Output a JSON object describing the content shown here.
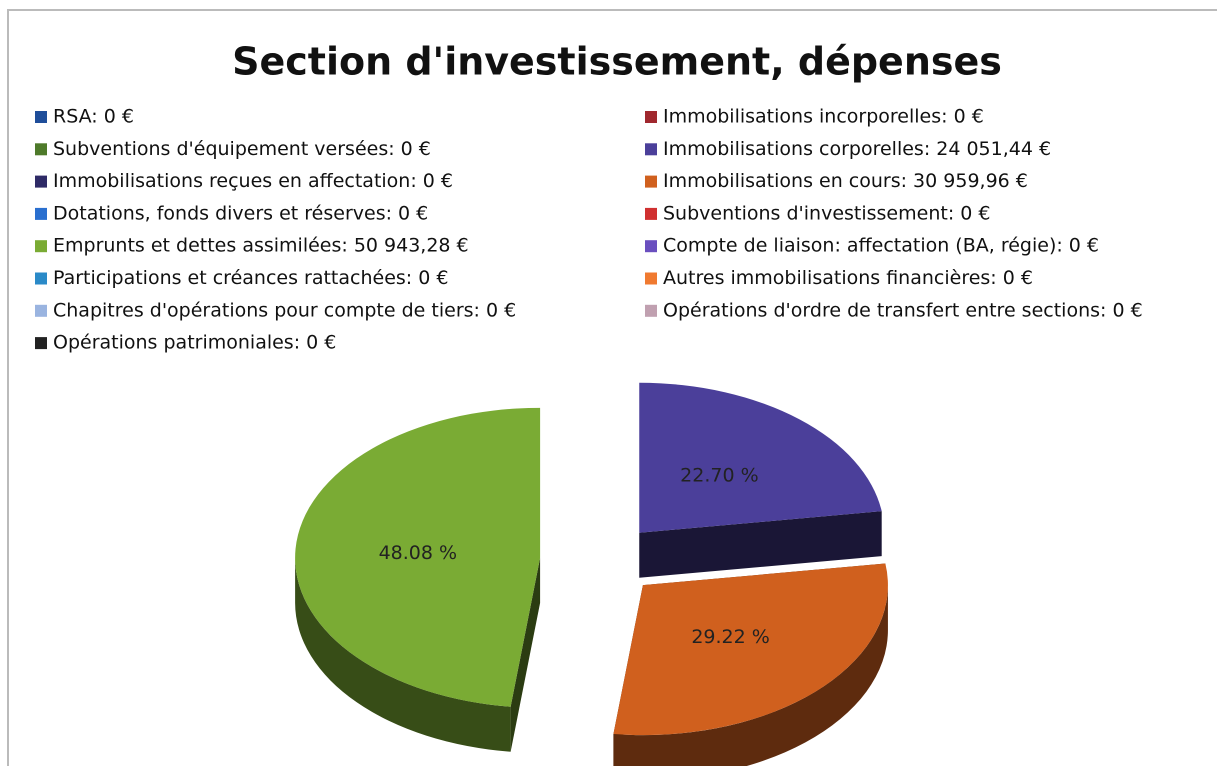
{
  "chart_data": {
    "type": "pie",
    "title": "Section d'investissement, dépenses",
    "categories": [
      "RSA: 0 €",
      "Immobilisations incorporelles: 0 €",
      "Subventions d'équipement versées: 0 €",
      "Immobilisations corporelles: 24 051,44 €",
      "Immobilisations reçues en affectation: 0 €",
      "Immobilisations en cours: 30 959,96 €",
      "Dotations, fonds divers et réserves: 0 €",
      "Subventions d'investissement: 0 €",
      "Emprunts et dettes assimilées: 50 943,28 €",
      "Compte de liaison: affectation (BA, régie): 0 €",
      "Participations et créances rattachées: 0 €",
      "Autres immobilisations financières: 0 €",
      "Chapitres d'opérations pour compte de tiers: 0 €",
      "Opérations d'ordre de transfert entre sections: 0 €",
      "Opérations patrimoniales: 0 €"
    ],
    "values": [
      0,
      0,
      0,
      22.7,
      0,
      29.22,
      0,
      0,
      48.08,
      0,
      0,
      0,
      0,
      0,
      0
    ],
    "value_labels": [
      null,
      null,
      null,
      "22.70 %",
      null,
      "29.22 %",
      null,
      null,
      "48.08 %",
      null,
      null,
      null,
      null,
      null,
      null
    ],
    "colors": [
      "#1f4e9a",
      "#a0282e",
      "#4e7a2a",
      "#4b3f9a",
      "#2e2a66",
      "#d0601e",
      "#2a6fcf",
      "#d03030",
      "#7aab34",
      "#6a4fbf",
      "#2a8ac8",
      "#f07a30",
      "#9ab4e0",
      "#c0a0b0",
      "#222222"
    ],
    "legend": "top"
  }
}
